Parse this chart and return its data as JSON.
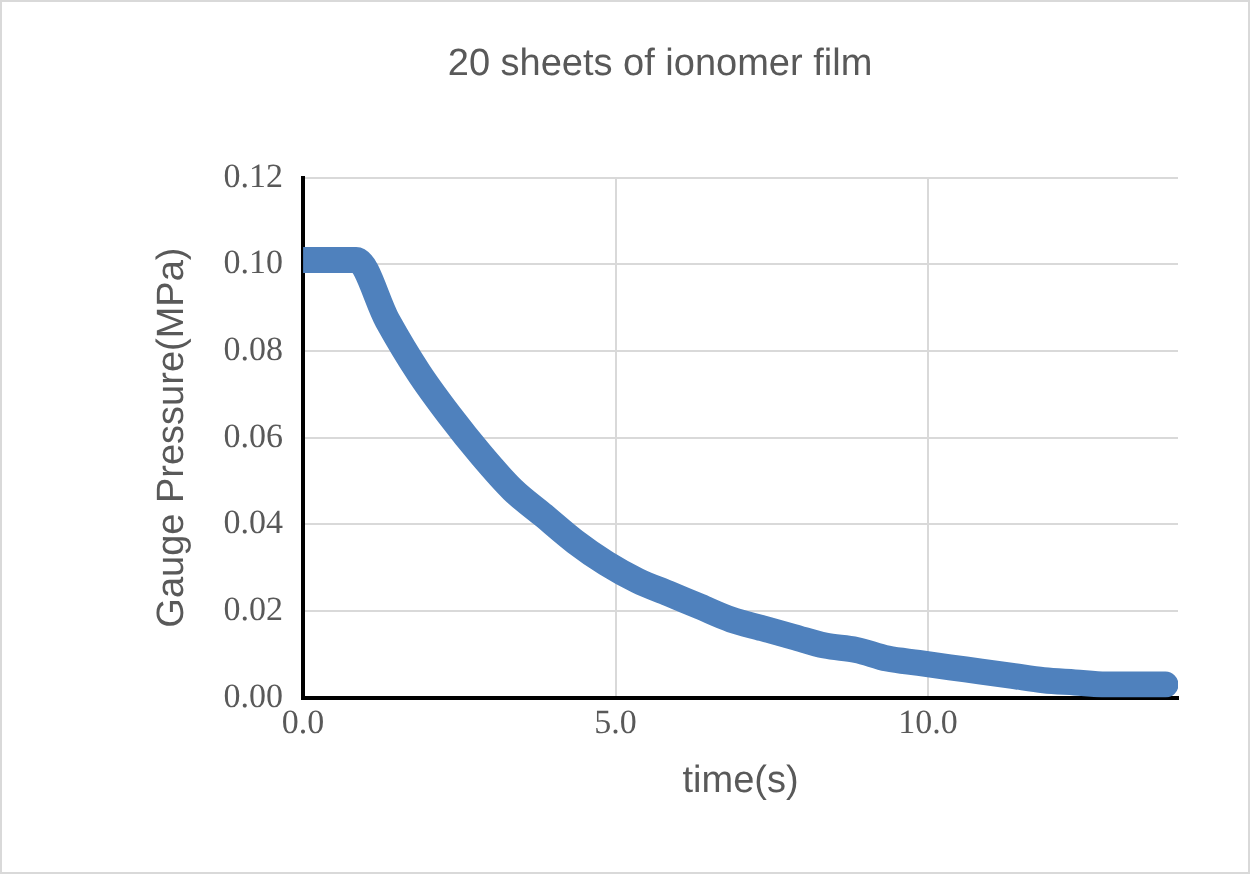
{
  "chart_data": {
    "type": "line",
    "title": "20 sheets of ionomer film",
    "xlabel": "time(s)",
    "ylabel": "Gauge Pressure(MPa)",
    "x": [
      0,
      0.3,
      0.6,
      0.85,
      1.35,
      1.85,
      2.35,
      2.85,
      3.35,
      3.85,
      4.35,
      4.85,
      5.35,
      5.85,
      6.35,
      6.85,
      7.35,
      7.85,
      8.35,
      8.85,
      9.35,
      9.85,
      10.35,
      10.85,
      11.35,
      11.85,
      12.35,
      12.85,
      13.35,
      13.8
    ],
    "series": [
      {
        "color": "#4f81bd",
        "values": [
          0.101,
          0.101,
          0.101,
          0.101,
          0.087,
          0.075,
          0.065,
          0.056,
          0.048,
          0.042,
          0.036,
          0.031,
          0.027,
          0.024,
          0.021,
          0.018,
          0.016,
          0.014,
          0.012,
          0.011,
          0.009,
          0.008,
          0.007,
          0.006,
          0.005,
          0.004,
          0.0035,
          0.003,
          0.003,
          0.003
        ]
      }
    ],
    "xlim": [
      0,
      14
    ],
    "xticks": [
      {
        "value": 0,
        "label": "0.0"
      },
      {
        "value": 5,
        "label": "5.0"
      },
      {
        "value": 10,
        "label": "10.0"
      }
    ],
    "ylim": [
      0,
      0.12
    ],
    "yticks": [
      {
        "value": 0,
        "label": "0.00"
      },
      {
        "value": 0.02,
        "label": "0.02"
      },
      {
        "value": 0.04,
        "label": "0.04"
      },
      {
        "value": 0.06,
        "label": "0.06"
      },
      {
        "value": 0.08,
        "label": "0.08"
      },
      {
        "value": 0.1,
        "label": "0.10"
      },
      {
        "value": 0.12,
        "label": "0.12"
      }
    ],
    "grid": true,
    "legend": false,
    "marker": "none",
    "line_style": "solid"
  }
}
